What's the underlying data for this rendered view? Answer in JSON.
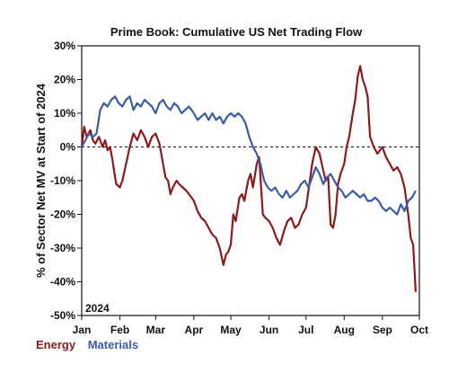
{
  "chart_data": {
    "type": "line",
    "title": "Prime Book: Cumulative US Net Trading Flow",
    "xlabel": "",
    "ylabel": "% of Sector Net MV at Start of 2024",
    "annotation": "2024",
    "x_ticks": [
      "Jan",
      "Feb",
      "Mar",
      "Apr",
      "May",
      "Jun",
      "Jul",
      "Aug",
      "Sep",
      "Oct"
    ],
    "y_ticks": [
      "30%",
      "20%",
      "10%",
      "0%",
      "-10%",
      "-20%",
      "-30%",
      "-40%",
      "-50%"
    ],
    "ylim": [
      -50,
      30
    ],
    "xlim": [
      "2024-01-01",
      "2024-10-01"
    ],
    "grid": false,
    "zero_line": "dashed",
    "legend_position": "bottom-left",
    "series": [
      {
        "name": "Energy",
        "color": "#8b1a1a",
        "points": [
          [
            "2024-01-01",
            0
          ],
          [
            "2024-01-03",
            6
          ],
          [
            "2024-01-05",
            3
          ],
          [
            "2024-01-08",
            5
          ],
          [
            "2024-01-10",
            2
          ],
          [
            "2024-01-12",
            1
          ],
          [
            "2024-01-15",
            3
          ],
          [
            "2024-01-18",
            0
          ],
          [
            "2024-01-20",
            2
          ],
          [
            "2024-01-22",
            -1
          ],
          [
            "2024-01-24",
            0
          ],
          [
            "2024-01-26",
            -4
          ],
          [
            "2024-01-29",
            -11
          ],
          [
            "2024-02-01",
            -12
          ],
          [
            "2024-02-03",
            -10
          ],
          [
            "2024-02-06",
            -5
          ],
          [
            "2024-02-09",
            0
          ],
          [
            "2024-02-12",
            4
          ],
          [
            "2024-02-15",
            2
          ],
          [
            "2024-02-18",
            5
          ],
          [
            "2024-02-21",
            3
          ],
          [
            "2024-02-24",
            0
          ],
          [
            "2024-02-27",
            3
          ],
          [
            "2024-03-01",
            4
          ],
          [
            "2024-03-04",
            1
          ],
          [
            "2024-03-07",
            -5
          ],
          [
            "2024-03-09",
            -9
          ],
          [
            "2024-03-11",
            -10
          ],
          [
            "2024-03-13",
            -14
          ],
          [
            "2024-03-15",
            -12
          ],
          [
            "2024-03-18",
            -10
          ],
          [
            "2024-03-20",
            -11
          ],
          [
            "2024-03-23",
            -12
          ],
          [
            "2024-03-26",
            -13
          ],
          [
            "2024-03-28",
            -14
          ],
          [
            "2024-04-01",
            -16
          ],
          [
            "2024-04-04",
            -19
          ],
          [
            "2024-04-07",
            -21
          ],
          [
            "2024-04-10",
            -22
          ],
          [
            "2024-04-13",
            -24
          ],
          [
            "2024-04-16",
            -26
          ],
          [
            "2024-04-19",
            -27
          ],
          [
            "2024-04-22",
            -30
          ],
          [
            "2024-04-25",
            -35
          ],
          [
            "2024-04-27",
            -32
          ],
          [
            "2024-04-29",
            -31
          ],
          [
            "2024-05-01",
            -29
          ],
          [
            "2024-05-03",
            -20
          ],
          [
            "2024-05-05",
            -22
          ],
          [
            "2024-05-08",
            -15
          ],
          [
            "2024-05-10",
            -14
          ],
          [
            "2024-05-12",
            -16
          ],
          [
            "2024-05-15",
            -10
          ],
          [
            "2024-05-17",
            -8
          ],
          [
            "2024-05-19",
            -12
          ],
          [
            "2024-05-22",
            -5
          ],
          [
            "2024-05-24",
            -3
          ],
          [
            "2024-05-27",
            -20
          ],
          [
            "2024-05-29",
            -21
          ],
          [
            "2024-06-01",
            -22
          ],
          [
            "2024-06-04",
            -24
          ],
          [
            "2024-06-07",
            -27
          ],
          [
            "2024-06-10",
            -29
          ],
          [
            "2024-06-13",
            -25
          ],
          [
            "2024-06-16",
            -22
          ],
          [
            "2024-06-19",
            -21
          ],
          [
            "2024-06-22",
            -24
          ],
          [
            "2024-06-25",
            -23
          ],
          [
            "2024-06-28",
            -20
          ],
          [
            "2024-07-01",
            -18
          ],
          [
            "2024-07-03",
            -13
          ],
          [
            "2024-07-06",
            -5
          ],
          [
            "2024-07-09",
            0
          ],
          [
            "2024-07-12",
            -2
          ],
          [
            "2024-07-15",
            -7
          ],
          [
            "2024-07-17",
            -10
          ],
          [
            "2024-07-19",
            -9
          ],
          [
            "2024-07-21",
            -23
          ],
          [
            "2024-07-23",
            -24
          ],
          [
            "2024-07-25",
            -20
          ],
          [
            "2024-07-27",
            -11
          ],
          [
            "2024-07-29",
            -8
          ],
          [
            "2024-08-01",
            -5
          ],
          [
            "2024-08-03",
            0
          ],
          [
            "2024-08-05",
            3
          ],
          [
            "2024-08-08",
            10
          ],
          [
            "2024-08-10",
            14
          ],
          [
            "2024-08-12",
            21
          ],
          [
            "2024-08-14",
            24
          ],
          [
            "2024-08-16",
            20
          ],
          [
            "2024-08-18",
            18
          ],
          [
            "2024-08-20",
            15
          ],
          [
            "2024-08-22",
            3
          ],
          [
            "2024-08-25",
            0
          ],
          [
            "2024-08-28",
            -2
          ],
          [
            "2024-09-01",
            0
          ],
          [
            "2024-09-04",
            -3
          ],
          [
            "2024-09-07",
            -5
          ],
          [
            "2024-09-10",
            -7
          ],
          [
            "2024-09-13",
            -6
          ],
          [
            "2024-09-16",
            -8
          ],
          [
            "2024-09-19",
            -12
          ],
          [
            "2024-09-22",
            -20
          ],
          [
            "2024-09-24",
            -27
          ],
          [
            "2024-09-26",
            -29
          ],
          [
            "2024-09-28",
            -43
          ]
        ]
      },
      {
        "name": "Materials",
        "color": "#3a5ba8",
        "points": [
          [
            "2024-01-01",
            0
          ],
          [
            "2024-01-04",
            2
          ],
          [
            "2024-01-07",
            4
          ],
          [
            "2024-01-10",
            3
          ],
          [
            "2024-01-13",
            4
          ],
          [
            "2024-01-16",
            11
          ],
          [
            "2024-01-19",
            13
          ],
          [
            "2024-01-22",
            12
          ],
          [
            "2024-01-25",
            14
          ],
          [
            "2024-01-28",
            15
          ],
          [
            "2024-01-31",
            13
          ],
          [
            "2024-02-03",
            12
          ],
          [
            "2024-02-06",
            14
          ],
          [
            "2024-02-09",
            15
          ],
          [
            "2024-02-12",
            11
          ],
          [
            "2024-02-15",
            13
          ],
          [
            "2024-02-18",
            12
          ],
          [
            "2024-02-21",
            14
          ],
          [
            "2024-02-24",
            13
          ],
          [
            "2024-02-27",
            12
          ],
          [
            "2024-03-01",
            10
          ],
          [
            "2024-03-04",
            13
          ],
          [
            "2024-03-07",
            14
          ],
          [
            "2024-03-10",
            12
          ],
          [
            "2024-03-13",
            11
          ],
          [
            "2024-03-16",
            13
          ],
          [
            "2024-03-19",
            12
          ],
          [
            "2024-03-22",
            10
          ],
          [
            "2024-03-25",
            11
          ],
          [
            "2024-03-28",
            12
          ],
          [
            "2024-04-01",
            10
          ],
          [
            "2024-04-04",
            8
          ],
          [
            "2024-04-07",
            9
          ],
          [
            "2024-04-10",
            10
          ],
          [
            "2024-04-13",
            8
          ],
          [
            "2024-04-16",
            10
          ],
          [
            "2024-04-19",
            8
          ],
          [
            "2024-04-22",
            9
          ],
          [
            "2024-04-25",
            7
          ],
          [
            "2024-04-28",
            9
          ],
          [
            "2024-05-01",
            10
          ],
          [
            "2024-05-04",
            9
          ],
          [
            "2024-05-07",
            10
          ],
          [
            "2024-05-10",
            9
          ],
          [
            "2024-05-13",
            7
          ],
          [
            "2024-05-16",
            3
          ],
          [
            "2024-05-19",
            0
          ],
          [
            "2024-05-22",
            -2
          ],
          [
            "2024-05-25",
            -5
          ],
          [
            "2024-05-28",
            -10
          ],
          [
            "2024-05-31",
            -12
          ],
          [
            "2024-06-03",
            -13
          ],
          [
            "2024-06-06",
            -12
          ],
          [
            "2024-06-09",
            -14
          ],
          [
            "2024-06-12",
            -15
          ],
          [
            "2024-06-15",
            -13
          ],
          [
            "2024-06-18",
            -15
          ],
          [
            "2024-06-21",
            -14
          ],
          [
            "2024-06-24",
            -13
          ],
          [
            "2024-06-27",
            -11
          ],
          [
            "2024-06-30",
            -10
          ],
          [
            "2024-07-03",
            -12
          ],
          [
            "2024-07-06",
            -9
          ],
          [
            "2024-07-09",
            -6
          ],
          [
            "2024-07-12",
            -8
          ],
          [
            "2024-07-15",
            -11
          ],
          [
            "2024-07-18",
            -9
          ],
          [
            "2024-07-21",
            -8
          ],
          [
            "2024-07-24",
            -10
          ],
          [
            "2024-07-27",
            -12
          ],
          [
            "2024-07-30",
            -13
          ],
          [
            "2024-08-02",
            -15
          ],
          [
            "2024-08-05",
            -14
          ],
          [
            "2024-08-08",
            -13
          ],
          [
            "2024-08-11",
            -14
          ],
          [
            "2024-08-14",
            -15
          ],
          [
            "2024-08-17",
            -14
          ],
          [
            "2024-08-20",
            -16
          ],
          [
            "2024-08-23",
            -16
          ],
          [
            "2024-08-26",
            -15
          ],
          [
            "2024-08-29",
            -16
          ],
          [
            "2024-09-01",
            -18
          ],
          [
            "2024-09-04",
            -19
          ],
          [
            "2024-09-07",
            -18
          ],
          [
            "2024-09-10",
            -19
          ],
          [
            "2024-09-13",
            -20
          ],
          [
            "2024-09-16",
            -17
          ],
          [
            "2024-09-19",
            -19
          ],
          [
            "2024-09-22",
            -16
          ],
          [
            "2024-09-25",
            -15
          ],
          [
            "2024-09-28",
            -13
          ]
        ]
      }
    ]
  }
}
